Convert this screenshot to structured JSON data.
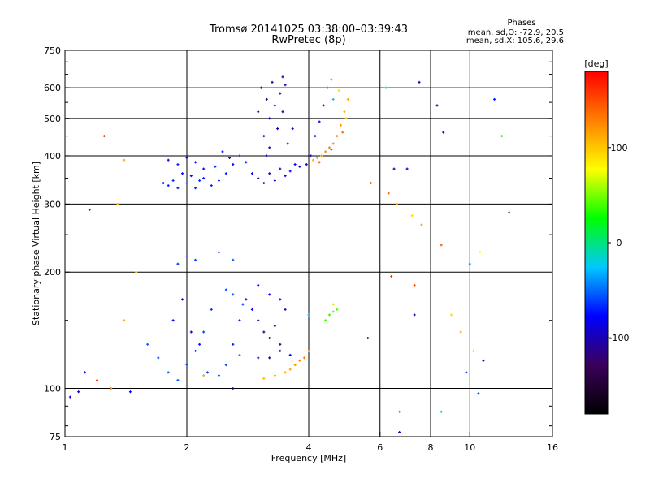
{
  "header": {
    "title_line1": "Tromsø 20141025 03:38:00–03:39:43",
    "title_line2": "RwPretec (8p)"
  },
  "stats": {
    "heading": "Phases",
    "line_o": "mean, sd,O: -72.9, 20.5",
    "line_x": "mean, sd,X: 105.6, 29.6"
  },
  "colorbar": {
    "unit": "[deg]",
    "ticks": [
      {
        "value": 100,
        "label": "100"
      },
      {
        "value": 0,
        "label": "0"
      },
      {
        "value": -100,
        "label": "-100"
      }
    ],
    "range": [
      -180,
      180
    ],
    "stops": [
      "#000000",
      "#3a005a",
      "#0000ff",
      "#00c8ff",
      "#00ff00",
      "#ffff00",
      "#ff8000",
      "#ff0000"
    ]
  },
  "chart_data": {
    "type": "scatter",
    "xlabel": "Frequency [MHz]",
    "ylabel": "Stationary phase Virtual Height [km]",
    "xscale": "log",
    "yscale": "log",
    "xlim": [
      1,
      16
    ],
    "ylim": [
      75,
      750
    ],
    "xticks": [
      {
        "value": 1,
        "label": "1"
      },
      {
        "value": 2,
        "label": "2"
      },
      {
        "value": 4,
        "label": "4"
      },
      {
        "value": 6,
        "label": "6"
      },
      {
        "value": 8,
        "label": "8"
      },
      {
        "value": 10,
        "label": "10"
      },
      {
        "value": 16,
        "label": "16"
      }
    ],
    "yticks": [
      {
        "value": 75,
        "label": "75"
      },
      {
        "value": 100,
        "label": "100"
      },
      {
        "value": 200,
        "label": "200"
      },
      {
        "value": 300,
        "label": "300"
      },
      {
        "value": 400,
        "label": "400"
      },
      {
        "value": 500,
        "label": "500"
      },
      {
        "value": 600,
        "label": "600"
      },
      {
        "value": 750,
        "label": "750"
      }
    ],
    "xgrid": [
      2,
      4,
      6,
      8,
      10
    ],
    "ygrid": [
      100,
      200,
      300,
      400,
      500,
      600
    ],
    "phase_range": [
      -180,
      180
    ],
    "series": [
      {
        "points": [
          [
            1.75,
            340,
            -90
          ],
          [
            1.8,
            335,
            -70
          ],
          [
            1.85,
            345,
            -65
          ],
          [
            1.9,
            330,
            -70
          ],
          [
            1.95,
            360,
            -75
          ],
          [
            2.0,
            340,
            -70
          ],
          [
            2.05,
            355,
            -75
          ],
          [
            2.1,
            330,
            -70
          ],
          [
            2.15,
            345,
            -65
          ],
          [
            2.2,
            370,
            -80
          ],
          [
            1.8,
            390,
            -75
          ],
          [
            1.9,
            380,
            -70
          ],
          [
            2.0,
            395,
            -80
          ],
          [
            2.1,
            385,
            -75
          ],
          [
            2.2,
            350,
            -70
          ],
          [
            2.3,
            335,
            -70
          ],
          [
            2.4,
            345,
            -65
          ],
          [
            2.5,
            360,
            -70
          ],
          [
            2.6,
            380,
            -75
          ],
          [
            2.7,
            400,
            -70
          ],
          [
            2.8,
            385,
            -75
          ],
          [
            2.9,
            360,
            -80
          ],
          [
            2.45,
            410,
            -75
          ],
          [
            2.55,
            395,
            -70
          ],
          [
            2.35,
            375,
            -65
          ],
          [
            3.0,
            350,
            -95
          ],
          [
            3.1,
            340,
            -100
          ],
          [
            3.2,
            360,
            -95
          ],
          [
            3.3,
            345,
            -90
          ],
          [
            3.4,
            370,
            -85
          ],
          [
            3.5,
            355,
            -80
          ],
          [
            3.6,
            365,
            -75
          ],
          [
            3.7,
            380,
            -80
          ],
          [
            3.8,
            375,
            -85
          ],
          [
            3.15,
            400,
            -100
          ],
          [
            3.1,
            450,
            -100
          ],
          [
            3.2,
            500,
            -105
          ],
          [
            3.3,
            540,
            -110
          ],
          [
            3.4,
            580,
            -100
          ],
          [
            3.25,
            620,
            -110
          ],
          [
            3.05,
            600,
            -130
          ],
          [
            3.15,
            560,
            -120
          ],
          [
            3.35,
            470,
            -95
          ],
          [
            3.45,
            520,
            -105
          ],
          [
            3.5,
            610,
            -100
          ],
          [
            3.55,
            430,
            -95
          ],
          [
            3.65,
            470,
            -90
          ],
          [
            3.2,
            420,
            -110
          ],
          [
            3.0,
            520,
            -115
          ],
          [
            3.45,
            640,
            -105
          ],
          [
            3.95,
            380,
            -95
          ],
          [
            4.05,
            400,
            -90
          ],
          [
            4.15,
            450,
            -85
          ],
          [
            4.25,
            490,
            -80
          ],
          [
            4.35,
            540,
            -70
          ],
          [
            4.45,
            600,
            -45
          ],
          [
            4.55,
            630,
            -30
          ],
          [
            4.6,
            560,
            -20
          ],
          [
            4.1,
            390,
            110
          ],
          [
            4.2,
            395,
            115
          ],
          [
            4.3,
            400,
            120
          ],
          [
            4.4,
            410,
            125
          ],
          [
            4.5,
            420,
            130
          ],
          [
            4.6,
            430,
            125
          ],
          [
            4.7,
            450,
            130
          ],
          [
            4.8,
            480,
            120
          ],
          [
            4.9,
            520,
            115
          ],
          [
            5.0,
            560,
            110
          ],
          [
            4.75,
            590,
            90
          ],
          [
            4.95,
            500,
            105
          ],
          [
            4.85,
            460,
            140
          ],
          [
            4.55,
            415,
            150
          ],
          [
            4.25,
            385,
            150
          ],
          [
            1.9,
            210,
            -65
          ],
          [
            2.0,
            220,
            -70
          ],
          [
            2.1,
            215,
            -60
          ],
          [
            2.4,
            225,
            -60
          ],
          [
            2.6,
            215,
            -55
          ],
          [
            1.6,
            130,
            -55
          ],
          [
            1.7,
            120,
            -60
          ],
          [
            1.8,
            110,
            -50
          ],
          [
            1.9,
            105,
            -55
          ],
          [
            2.0,
            115,
            -60
          ],
          [
            2.1,
            125,
            -55
          ],
          [
            2.2,
            140,
            -60
          ],
          [
            2.3,
            160,
            -65
          ],
          [
            1.85,
            150,
            -80
          ],
          [
            1.95,
            170,
            -85
          ],
          [
            2.05,
            140,
            -80
          ],
          [
            2.15,
            130,
            -75
          ],
          [
            2.25,
            110,
            -60
          ],
          [
            2.4,
            108,
            -55
          ],
          [
            2.5,
            115,
            -60
          ],
          [
            2.6,
            130,
            -70
          ],
          [
            2.7,
            150,
            -75
          ],
          [
            2.8,
            170,
            -80
          ],
          [
            2.9,
            160,
            -75
          ],
          [
            2.5,
            180,
            -60
          ],
          [
            2.6,
            175,
            -55
          ],
          [
            2.75,
            165,
            -60
          ],
          [
            3.0,
            150,
            -110
          ],
          [
            3.1,
            140,
            -120
          ],
          [
            3.2,
            135,
            -115
          ],
          [
            3.3,
            145,
            -110
          ],
          [
            3.4,
            130,
            -120
          ],
          [
            3.0,
            120,
            -100
          ],
          [
            3.2,
            120,
            -105
          ],
          [
            3.4,
            125,
            -95
          ],
          [
            3.6,
            122,
            -90
          ],
          [
            3.0,
            185,
            -80
          ],
          [
            3.2,
            175,
            -85
          ],
          [
            3.4,
            170,
            -80
          ],
          [
            3.5,
            160,
            -95
          ],
          [
            3.5,
            110,
            110
          ],
          [
            3.6,
            112,
            115
          ],
          [
            3.7,
            115,
            120
          ],
          [
            3.8,
            118,
            125
          ],
          [
            3.9,
            120,
            130
          ],
          [
            4.0,
            125,
            135
          ],
          [
            3.3,
            108,
            110
          ],
          [
            3.1,
            106,
            105
          ],
          [
            4.4,
            150,
            40
          ],
          [
            4.5,
            155,
            35
          ],
          [
            4.6,
            158,
            45
          ],
          [
            4.7,
            160,
            40
          ],
          [
            4.6,
            165,
            90
          ],
          [
            4.0,
            155,
            -35
          ],
          [
            6.2,
            600,
            -20
          ],
          [
            7.5,
            620,
            -110
          ],
          [
            8.3,
            540,
            -100
          ],
          [
            8.6,
            460,
            -90
          ],
          [
            11.5,
            560,
            -70
          ],
          [
            12.0,
            450,
            30
          ],
          [
            6.5,
            370,
            -100
          ],
          [
            7.0,
            370,
            -90
          ],
          [
            5.7,
            340,
            140
          ],
          [
            6.3,
            320,
            140
          ],
          [
            6.6,
            300,
            110
          ],
          [
            7.2,
            280,
            90
          ],
          [
            7.6,
            265,
            120
          ],
          [
            8.5,
            235,
            145
          ],
          [
            10.0,
            210,
            -40
          ],
          [
            10.6,
            225,
            80
          ],
          [
            12.5,
            285,
            -120
          ],
          [
            6.4,
            195,
            160
          ],
          [
            7.3,
            185,
            150
          ],
          [
            7.3,
            155,
            -100
          ],
          [
            9.0,
            155,
            90
          ],
          [
            9.5,
            140,
            110
          ],
          [
            10.2,
            125,
            90
          ],
          [
            10.8,
            118,
            -90
          ],
          [
            9.8,
            110,
            -60
          ],
          [
            10.5,
            97,
            -60
          ],
          [
            8.5,
            87,
            -30
          ],
          [
            6.7,
            87,
            -10
          ],
          [
            6.7,
            77,
            -100
          ],
          [
            5.6,
            135,
            -120
          ],
          [
            1.03,
            95,
            -90
          ],
          [
            1.08,
            98,
            -100
          ],
          [
            1.12,
            110,
            -70
          ],
          [
            1.2,
            105,
            160
          ],
          [
            1.3,
            100,
            130
          ],
          [
            1.45,
            98,
            -80
          ],
          [
            1.15,
            290,
            -60
          ],
          [
            1.25,
            450,
            160
          ],
          [
            1.35,
            300,
            110
          ],
          [
            1.4,
            390,
            110
          ],
          [
            1.5,
            200,
            90
          ],
          [
            1.4,
            150,
            110
          ],
          [
            2.6,
            100,
            -110
          ],
          [
            2.7,
            122,
            -40
          ],
          [
            2.2,
            108,
            110
          ]
        ]
      }
    ]
  }
}
